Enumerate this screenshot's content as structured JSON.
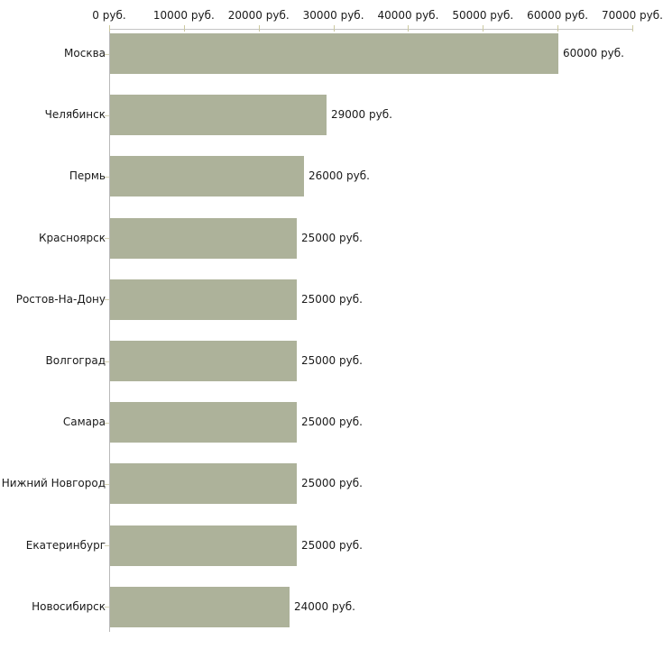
{
  "chart_data": {
    "type": "bar",
    "orientation": "horizontal",
    "title": "",
    "categories": [
      "Москва",
      "Челябинск",
      "Пермь",
      "Красноярск",
      "Ростов-На-Дону",
      "Волгоград",
      "Самара",
      "Нижний Новгород",
      "Екатеринбург",
      "Новосибирск"
    ],
    "values": [
      60000,
      29000,
      26000,
      25000,
      25000,
      25000,
      25000,
      25000,
      25000,
      24000
    ],
    "value_labels": [
      "60000 руб.",
      "29000 руб.",
      "26000 руб.",
      "25000 руб.",
      "25000 руб.",
      "25000 руб.",
      "25000 руб.",
      "25000 руб.",
      "25000 руб.",
      "24000 руб."
    ],
    "x_axis": {
      "position": "top",
      "min": 0,
      "max": 70000,
      "ticks": [
        0,
        10000,
        20000,
        30000,
        40000,
        50000,
        60000,
        70000
      ],
      "tick_labels": [
        "0 руб.",
        "10000 руб.",
        "20000 руб.",
        "30000 руб.",
        "40000 руб.",
        "50000 руб.",
        "60000 руб.",
        "70000 руб."
      ]
    },
    "grid": false,
    "legend": false,
    "colors": {
      "bar": "#adb29a",
      "axis_line": "#c4c4c4",
      "y_axis_line": "#b9b9b9",
      "tick_mark": "#ccc9a0",
      "category_tick": "#d4d1b2",
      "text": "#1a1a1a",
      "background": "#ffffff"
    }
  }
}
